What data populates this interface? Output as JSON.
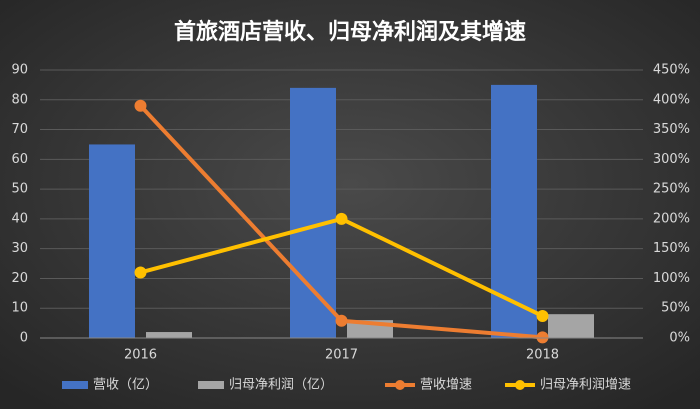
{
  "chart_data": {
    "type": "bar",
    "title": "首旅酒店营收、归母净利润及其增速",
    "categories": [
      "2016",
      "2017",
      "2018"
    ],
    "series": [
      {
        "name": "营收（亿）",
        "type": "bar",
        "color": "#4472c4",
        "values": [
          65,
          84,
          85
        ]
      },
      {
        "name": "归母净利润（亿）",
        "type": "bar",
        "color": "#a5a5a5",
        "values": [
          2,
          6,
          8
        ]
      },
      {
        "name": "营收增速",
        "type": "line",
        "axis": "y2",
        "color": "#ed7d31",
        "values": [
          390,
          29,
          1
        ]
      },
      {
        "name": "归母净利润增速",
        "type": "line",
        "axis": "y2",
        "color": "#ffc000",
        "values": [
          110,
          200,
          37
        ]
      }
    ],
    "ylim": [
      0,
      90
    ],
    "yticks": [
      0,
      10,
      20,
      30,
      40,
      50,
      60,
      70,
      80,
      90
    ],
    "y2lim": [
      0,
      450
    ],
    "y2ticks": [
      {
        "value": 0,
        "label": "0%"
      },
      {
        "value": 50,
        "label": "50%"
      },
      {
        "value": 100,
        "label": "100%"
      },
      {
        "value": 150,
        "label": "150%"
      },
      {
        "value": 200,
        "label": "200%"
      },
      {
        "value": 250,
        "label": "250%"
      },
      {
        "value": 300,
        "label": "300%"
      },
      {
        "value": 350,
        "label": "350%"
      },
      {
        "value": 400,
        "label": "400%"
      },
      {
        "value": 450,
        "label": "450%"
      }
    ],
    "grid": true
  }
}
